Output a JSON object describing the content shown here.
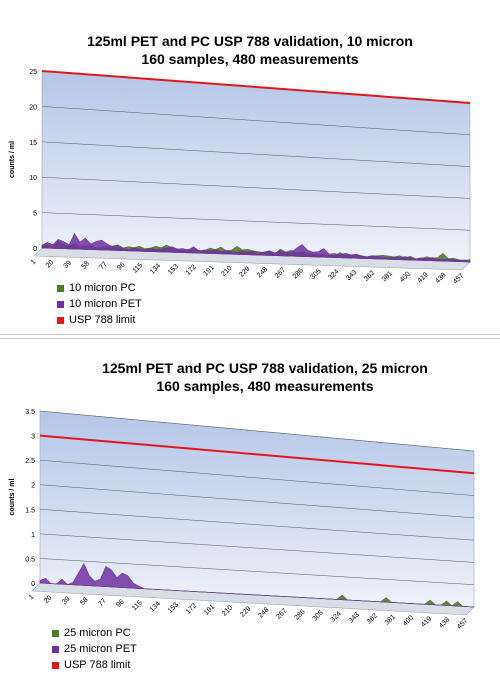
{
  "chart_data": [
    {
      "type": "area",
      "title_lines": [
        "125ml PET and PC USP 788 validation, 10 micron",
        "160 samples, 480 measurements"
      ],
      "ylabel": "counts / ml",
      "xlabel": "",
      "ylim": [
        0,
        25
      ],
      "yticks": [
        0,
        5,
        10,
        15,
        20,
        25
      ],
      "xtick_labels": [
        "1",
        "20",
        "39",
        "58",
        "77",
        "96",
        "115",
        "134",
        "153",
        "172",
        "191",
        "210",
        "229",
        "248",
        "267",
        "286",
        "305",
        "324",
        "343",
        "362",
        "381",
        "400",
        "419",
        "438",
        "457"
      ],
      "grid": true,
      "legend_position": "bottom-left",
      "series": [
        {
          "name": "10 micron PC",
          "color": "#4f7a28",
          "values": [
            0.3,
            0.6,
            0.2,
            1.0,
            0.5,
            0.4,
            0.8,
            0.3,
            0.5,
            0.6,
            0.3,
            0.4,
            0.5,
            0.6,
            0.8,
            0.4,
            0.6,
            0.5,
            0.7,
            0.4,
            0.5,
            0.8,
            0.6,
            1.0,
            0.7,
            0.4,
            0.3,
            0.5,
            0.7,
            0.4,
            0.4,
            0.8,
            0.6,
            1.0,
            0.5,
            0.6,
            1.2,
            0.7,
            0.8,
            0.6,
            0.5,
            0.4,
            0.6,
            0.3,
            1.0,
            0.6,
            0.9,
            0.5,
            0.7,
            0.5,
            0.5,
            0.4,
            0.4,
            0.3,
            0.3,
            0.8,
            0.4,
            0.4,
            0.6,
            0.3,
            0.2,
            0.4,
            0.5,
            0.6,
            0.5,
            0.4,
            0.6,
            0.3,
            0.6,
            0.2,
            0.3,
            0.6,
            0.4,
            0.5,
            1.2,
            0.4,
            0.5,
            0.3,
            0.2,
            0.4
          ]
        },
        {
          "name": "10 micron PET",
          "color": "#7030a0",
          "values": [
            0.4,
            0.8,
            0.5,
            1.3,
            1.0,
            0.6,
            2.2,
            1.0,
            1.6,
            0.8,
            1.2,
            1.4,
            0.9,
            0.5,
            0.7,
            0.3,
            0.2,
            0.4,
            0.3,
            0.2,
            0.5,
            0.3,
            0.4,
            0.6,
            0.8,
            0.5,
            0.6,
            0.4,
            0.9,
            0.3,
            0.5,
            0.4,
            0.6,
            0.3,
            0.5,
            0.4,
            0.3,
            0.5,
            0.4,
            0.6,
            0.3,
            0.5,
            0.7,
            0.4,
            0.8,
            0.5,
            0.6,
            1.2,
            1.8,
            1.0,
            0.7,
            0.8,
            1.3,
            0.5,
            0.6,
            0.4,
            0.7,
            0.5,
            0.6,
            0.4,
            0.3,
            0.5,
            0.4,
            0.3,
            0.2,
            0.4,
            0.3,
            0.5,
            0.3,
            0.2,
            0.4,
            0.3,
            0.5,
            0.3,
            0.2,
            0.4,
            0.3,
            0.2,
            0.3,
            0.2
          ]
        },
        {
          "name": "USP 788 limit",
          "color": "#e3171b",
          "values": [
            25,
            25
          ],
          "constant": 25
        }
      ]
    },
    {
      "type": "area",
      "title_lines": [
        "125ml  PET and PC USP 788 validation, 25 micron",
        "160 samples, 480 measurements"
      ],
      "ylabel": "counts / ml",
      "xlabel": "",
      "ylim": [
        0,
        3.5
      ],
      "yticks": [
        0,
        0.5,
        1,
        1.5,
        2,
        2.5,
        3,
        3.5
      ],
      "xtick_labels": [
        "1",
        "20",
        "39",
        "58",
        "77",
        "96",
        "115",
        "134",
        "153",
        "172",
        "191",
        "210",
        "229",
        "248",
        "267",
        "286",
        "305",
        "324",
        "343",
        "362",
        "381",
        "400",
        "419",
        "438",
        "457"
      ],
      "grid": true,
      "legend_position": "bottom-left",
      "series": [
        {
          "name": "25 micron PC",
          "color": "#4f7a28",
          "values": [
            0,
            0,
            0,
            0,
            0,
            0,
            0,
            0,
            0,
            0,
            0,
            0,
            0,
            0,
            0,
            0,
            0,
            0,
            0,
            0,
            0,
            0,
            0,
            0,
            0,
            0,
            0,
            0,
            0,
            0,
            0,
            0,
            0,
            0,
            0,
            0,
            0,
            0,
            0,
            0,
            0,
            0,
            0,
            0,
            0,
            0,
            0,
            0,
            0,
            0,
            0,
            0,
            0,
            0,
            0,
            0.1,
            0,
            0,
            0,
            0,
            0,
            0,
            0,
            0.1,
            0,
            0,
            0,
            0,
            0,
            0,
            0,
            0.1,
            0,
            0,
            0.1,
            0,
            0.1,
            0,
            0,
            0
          ]
        },
        {
          "name": "25 micron PET",
          "color": "#7030a0",
          "values": [
            0.05,
            0.1,
            0,
            0,
            0.1,
            0,
            0.05,
            0.25,
            0.45,
            0.2,
            0.1,
            0.15,
            0.42,
            0.35,
            0.2,
            0.3,
            0.25,
            0.1,
            0.05,
            0,
            0,
            0,
            0,
            0,
            0,
            0,
            0,
            0,
            0,
            0,
            0,
            0,
            0,
            0,
            0,
            0,
            0,
            0,
            0,
            0,
            0,
            0,
            0,
            0,
            0,
            0,
            0,
            0,
            0,
            0,
            0,
            0,
            0,
            0,
            0,
            0,
            0,
            0,
            0,
            0,
            0,
            0,
            0,
            0,
            0,
            0,
            0,
            0,
            0,
            0,
            0,
            0,
            0,
            0,
            0,
            0,
            0,
            0,
            0,
            0
          ]
        },
        {
          "name": "USP 788 limit",
          "color": "#e3171b",
          "values": [
            3,
            3
          ],
          "constant": 3
        }
      ]
    }
  ]
}
